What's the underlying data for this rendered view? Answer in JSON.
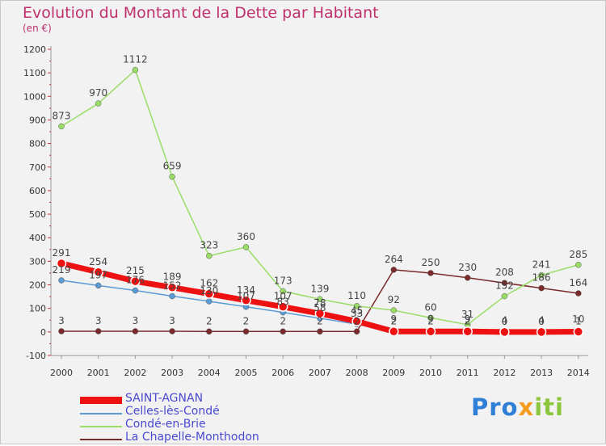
{
  "title": "Evolution du Montant de la Dette par Habitant",
  "unit": "(en €)",
  "logo": {
    "part1": "Pro",
    "part2": "x",
    "part3": "iti"
  },
  "chart_data": {
    "type": "line",
    "x": [
      "2000",
      "2001",
      "2002",
      "2003",
      "2004",
      "2005",
      "2006",
      "2007",
      "2008",
      "2009",
      "2010",
      "2011",
      "2012",
      "2013",
      "2014"
    ],
    "yticks": [
      "-100",
      "0",
      "100",
      "200",
      "300",
      "400",
      "500",
      "600",
      "700",
      "800",
      "900",
      "1000",
      "1100",
      "1200"
    ],
    "ylim": [
      -100,
      1200
    ],
    "grid": false,
    "legend": "bottom-left",
    "series": [
      {
        "name": "SAINT-AGNAN",
        "color": "#ee1111",
        "values": [
          291,
          254,
          215,
          189,
          162,
          134,
          107,
          78,
          45,
          2,
          2,
          2,
          0,
          0,
          1
        ],
        "labels": [
          "291",
          "254",
          "215",
          "189",
          "162",
          "134",
          "107",
          "78",
          "45",
          "2",
          "2",
          "2",
          "0",
          "0",
          "1"
        ]
      },
      {
        "name": "Celles-lès-Condé",
        "color": "#5b9bd5",
        "values": [
          219,
          197,
          176,
          152,
          130,
          107,
          83,
          58,
          33,
          9,
          9,
          9,
          4,
          4,
          10
        ],
        "labels": [
          "219",
          "197",
          "176",
          "152",
          "130",
          "107",
          "83",
          "58",
          "33",
          "9",
          "9",
          "9",
          "4",
          "4",
          "10"
        ]
      },
      {
        "name": "Condé-en-Brie",
        "color": "#99dd66",
        "values": [
          873,
          970,
          1112,
          659,
          323,
          360,
          173,
          139,
          110,
          92,
          60,
          31,
          152,
          241,
          285
        ],
        "labels": [
          "873",
          "970",
          "1112",
          "659",
          "323",
          "360",
          "173",
          "139",
          "110",
          "92",
          "60",
          "31",
          "152",
          "241",
          "285"
        ]
      },
      {
        "name": "La Chapelle-Monthodon",
        "color": "#7a2a2a",
        "values": [
          3,
          3,
          3,
          3,
          2,
          2,
          2,
          2,
          2,
          264,
          250,
          230,
          208,
          186,
          164
        ],
        "labels": [
          "3",
          "3",
          "3",
          "3",
          "2",
          "2",
          "2",
          "2",
          "2",
          "264",
          "250",
          "230",
          "208",
          "186",
          "164"
        ]
      }
    ]
  }
}
